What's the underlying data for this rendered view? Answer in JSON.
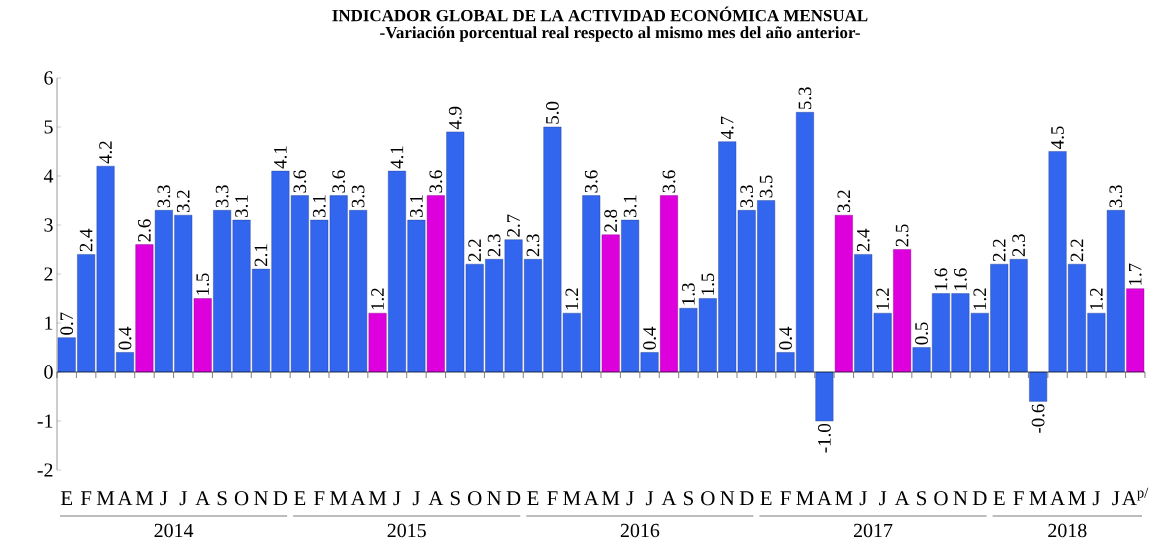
{
  "chart_data": {
    "type": "bar",
    "title": "INDICADOR GLOBAL DE LA ACTIVIDAD ECONÓMICA MENSUAL",
    "subtitle": "-Variación porcentual real respecto al mismo mes del año anterior-",
    "categories": [
      "E",
      "F",
      "M",
      "A",
      "M",
      "J",
      "J",
      "A",
      "S",
      "O",
      "N",
      "D",
      "E",
      "F",
      "M",
      "A",
      "M",
      "J",
      "J",
      "A",
      "S",
      "O",
      "N",
      "D",
      "E",
      "F",
      "M",
      "A",
      "M",
      "J",
      "J",
      "A",
      "S",
      "O",
      "N",
      "D",
      "E",
      "F",
      "M",
      "A",
      "M",
      "J",
      "J",
      "A",
      "S",
      "O",
      "N",
      "D",
      "E",
      "F",
      "M",
      "A",
      "M",
      "J",
      "J",
      "A$^{p/}$"
    ],
    "values": [
      0.7,
      2.4,
      4.2,
      0.4,
      2.6,
      3.3,
      3.2,
      1.5,
      3.3,
      3.1,
      2.1,
      4.1,
      3.6,
      3.1,
      3.6,
      3.3,
      1.2,
      4.1,
      3.1,
      3.6,
      4.9,
      2.2,
      2.3,
      2.7,
      2.3,
      5.0,
      1.2,
      3.6,
      2.8,
      3.1,
      0.4,
      3.6,
      1.3,
      1.5,
      4.7,
      3.3,
      3.5,
      0.4,
      5.3,
      -1.0,
      3.2,
      2.4,
      1.2,
      2.5,
      0.5,
      1.6,
      1.6,
      1.2,
      2.2,
      2.3,
      -0.6,
      4.5,
      2.2,
      1.2,
      3.3,
      1.7
    ],
    "value_labels": [
      "0.7",
      "2.4",
      "4.2",
      "0.4",
      "2.6",
      "3.3",
      "3.2",
      "1.5",
      "3.3",
      "3.1",
      "2.1",
      "4.1",
      "3.6",
      "3.1",
      "3.6",
      "3.3",
      "1.2",
      "4.1",
      "3.1",
      "3.6",
      "4.9",
      "2.2",
      "2.3",
      "2.7",
      "2.3",
      "5.0",
      "1.2",
      "3.6",
      "2.8",
      "3.1",
      "0.4",
      "3.6",
      "1.3",
      "1.5",
      "4.7",
      "3.3",
      "3.5",
      "0.4",
      "5.3",
      "-1.0",
      "3.2",
      "2.4",
      "1.2",
      "2.5",
      "0.5",
      "1.6",
      "1.6",
      "1.2",
      "2.2",
      "2.3",
      "-0.6",
      "4.5",
      "2.2",
      "1.2",
      "3.3",
      "1.7"
    ],
    "colors": [
      "#3366ee",
      "#3366ee",
      "#3366ee",
      "#3366ee",
      "#dd00dd",
      "#3366ee",
      "#3366ee",
      "#dd00dd",
      "#3366ee",
      "#3366ee",
      "#3366ee",
      "#3366ee",
      "#3366ee",
      "#3366ee",
      "#3366ee",
      "#3366ee",
      "#dd00dd",
      "#3366ee",
      "#3366ee",
      "#dd00dd",
      "#3366ee",
      "#3366ee",
      "#3366ee",
      "#3366ee",
      "#3366ee",
      "#3366ee",
      "#3366ee",
      "#3366ee",
      "#dd00dd",
      "#3366ee",
      "#3366ee",
      "#dd00dd",
      "#3366ee",
      "#3366ee",
      "#3366ee",
      "#3366ee",
      "#3366ee",
      "#3366ee",
      "#3366ee",
      "#3366ee",
      "#dd00dd",
      "#3366ee",
      "#3366ee",
      "#dd00dd",
      "#3366ee",
      "#3366ee",
      "#3366ee",
      "#3366ee",
      "#3366ee",
      "#3366ee",
      "#3366ee",
      "#3366ee",
      "#3366ee",
      "#3366ee",
      "#3366ee",
      "#dd00dd"
    ],
    "ylim": [
      -2,
      6
    ],
    "yticks": [
      -2,
      -1,
      0,
      1,
      2,
      3,
      4,
      5,
      6
    ],
    "annotations": [
      "2014",
      "2015",
      "2016",
      "2017",
      "2018"
    ]
  }
}
